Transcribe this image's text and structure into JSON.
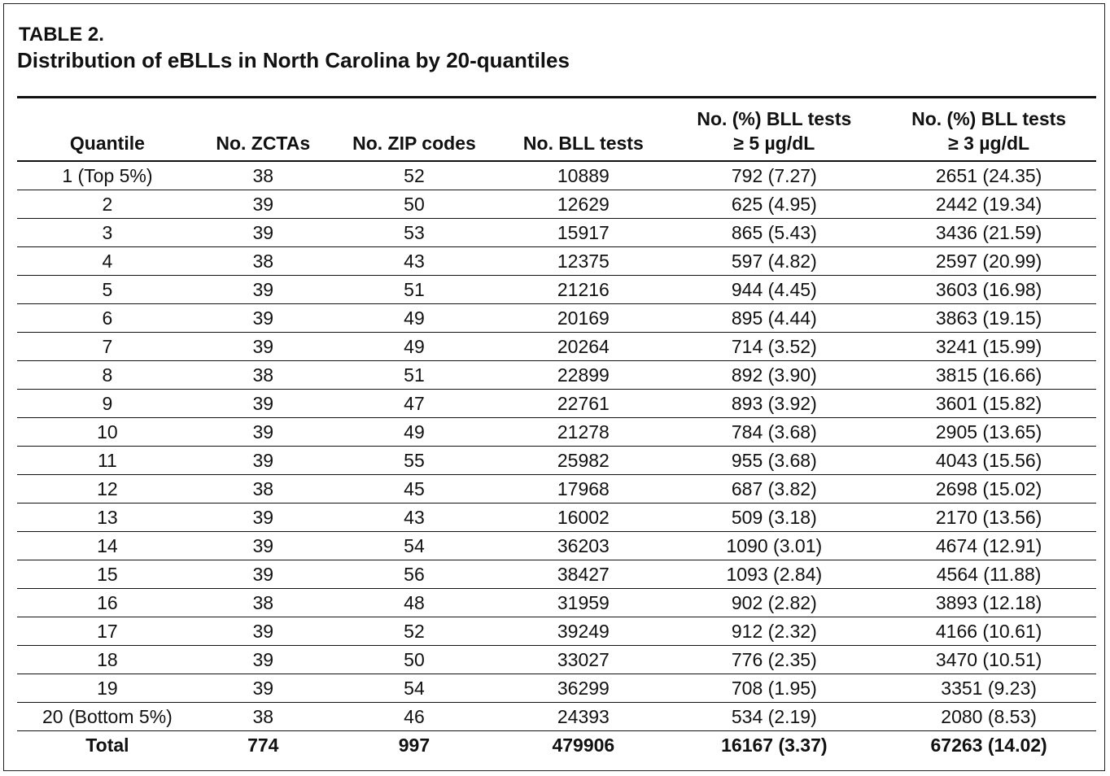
{
  "header": {
    "label": "TABLE 2.",
    "title": "Distribution of eBLLs in North Carolina by 20-quantiles"
  },
  "table": {
    "columns": [
      [
        "Quantile"
      ],
      [
        "No. ZCTAs"
      ],
      [
        "No. ZIP codes"
      ],
      [
        "No. BLL tests"
      ],
      [
        "No. (%) BLL tests",
        "≥ 5 µg/dL"
      ],
      [
        "No. (%) BLL tests",
        "≥ 3 µg/dL"
      ]
    ],
    "rows": [
      [
        "1 (Top 5%)",
        "38",
        "52",
        "10889",
        "792 (7.27)",
        "2651 (24.35)"
      ],
      [
        "2",
        "39",
        "50",
        "12629",
        "625 (4.95)",
        "2442 (19.34)"
      ],
      [
        "3",
        "39",
        "53",
        "15917",
        "865 (5.43)",
        "3436 (21.59)"
      ],
      [
        "4",
        "38",
        "43",
        "12375",
        "597 (4.82)",
        "2597 (20.99)"
      ],
      [
        "5",
        "39",
        "51",
        "21216",
        "944 (4.45)",
        "3603 (16.98)"
      ],
      [
        "6",
        "39",
        "49",
        "20169",
        "895 (4.44)",
        "3863 (19.15)"
      ],
      [
        "7",
        "39",
        "49",
        "20264",
        "714 (3.52)",
        "3241 (15.99)"
      ],
      [
        "8",
        "38",
        "51",
        "22899",
        "892 (3.90)",
        "3815 (16.66)"
      ],
      [
        "9",
        "39",
        "47",
        "22761",
        "893 (3.92)",
        "3601 (15.82)"
      ],
      [
        "10",
        "39",
        "49",
        "21278",
        "784 (3.68)",
        "2905 (13.65)"
      ],
      [
        "11",
        "39",
        "55",
        "25982",
        "955 (3.68)",
        "4043 (15.56)"
      ],
      [
        "12",
        "38",
        "45",
        "17968",
        "687 (3.82)",
        "2698 (15.02)"
      ],
      [
        "13",
        "39",
        "43",
        "16002",
        "509 (3.18)",
        "2170 (13.56)"
      ],
      [
        "14",
        "39",
        "54",
        "36203",
        "1090 (3.01)",
        "4674 (12.91)"
      ],
      [
        "15",
        "39",
        "56",
        "38427",
        "1093 (2.84)",
        "4564 (11.88)"
      ],
      [
        "16",
        "38",
        "48",
        "31959",
        "902 (2.82)",
        "3893 (12.18)"
      ],
      [
        "17",
        "39",
        "52",
        "39249",
        "912 (2.32)",
        "4166 (10.61)"
      ],
      [
        "18",
        "39",
        "50",
        "33027",
        "776 (2.35)",
        "3470 (10.51)"
      ],
      [
        "19",
        "39",
        "54",
        "36299",
        "708 (1.95)",
        "3351 (9.23)"
      ],
      [
        "20 (Bottom 5%)",
        "38",
        "46",
        "24393",
        "534 (2.19)",
        "2080 (8.53)"
      ]
    ],
    "total": [
      "Total",
      "774",
      "997",
      "479906",
      "16167 (3.37)",
      "67263 (14.02)"
    ]
  }
}
